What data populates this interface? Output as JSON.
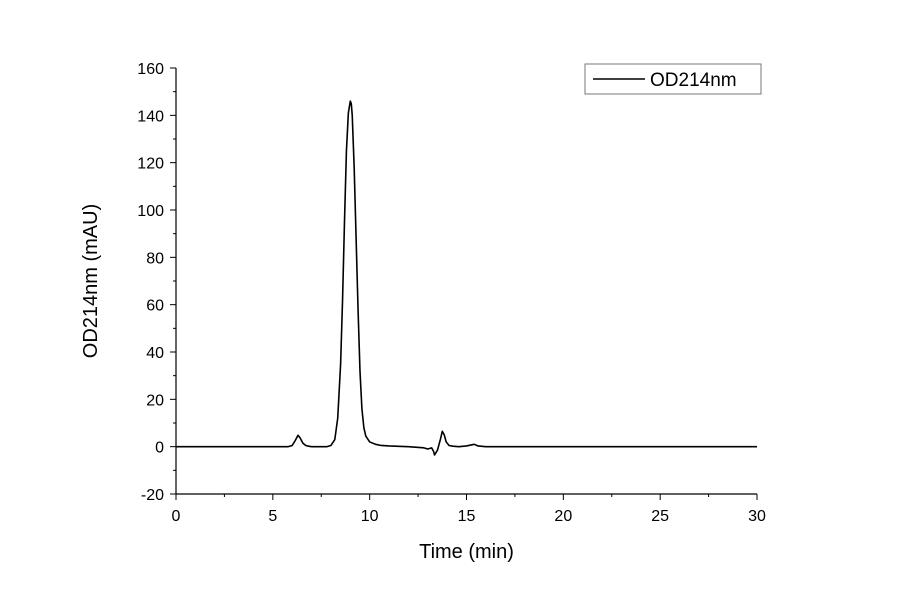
{
  "chart_data": {
    "type": "line",
    "title": "",
    "xlabel": "Time (min)",
    "ylabel": "OD214nm (mAU)",
    "xlim": [
      0,
      30
    ],
    "ylim": [
      -20,
      160
    ],
    "x_ticks": [
      "0",
      "5",
      "10",
      "15",
      "20",
      "25",
      "30"
    ],
    "y_ticks": [
      "-20",
      "0",
      "20",
      "40",
      "60",
      "80",
      "100",
      "120",
      "140",
      "160"
    ],
    "grid": false,
    "legend_position": "top-right",
    "series": [
      {
        "name": "OD214nm",
        "color": "#000000",
        "x": [
          0,
          5.8,
          6.0,
          6.15,
          6.3,
          6.4,
          6.55,
          6.7,
          6.85,
          7.0,
          7.8,
          8.0,
          8.2,
          8.35,
          8.5,
          8.6,
          8.7,
          8.8,
          8.9,
          9.0,
          9.05,
          9.1,
          9.2,
          9.3,
          9.4,
          9.5,
          9.6,
          9.7,
          9.8,
          10.0,
          10.3,
          10.6,
          11.0,
          12.0,
          12.8,
          13.0,
          13.2,
          13.3,
          13.35,
          13.5,
          13.65,
          13.75,
          13.85,
          13.95,
          14.1,
          14.3,
          14.6,
          15.0,
          15.4,
          15.6,
          16.0,
          18.0,
          20.0,
          25.0,
          30.0
        ],
        "y": [
          0,
          0,
          0.5,
          2.5,
          4.8,
          3.8,
          1.5,
          0.5,
          0.2,
          0,
          0,
          0.5,
          3,
          12,
          35,
          62,
          95,
          125,
          141,
          146,
          145,
          140,
          118,
          88,
          58,
          32,
          16,
          8,
          4.5,
          2,
          1,
          0.5,
          0.3,
          0,
          -0.5,
          -1,
          -0.5,
          -2,
          -3.5,
          -1.5,
          3,
          6.5,
          5,
          2,
          0.5,
          0.2,
          0,
          0.3,
          1,
          0.3,
          0,
          0,
          0,
          0,
          0
        ]
      }
    ]
  }
}
